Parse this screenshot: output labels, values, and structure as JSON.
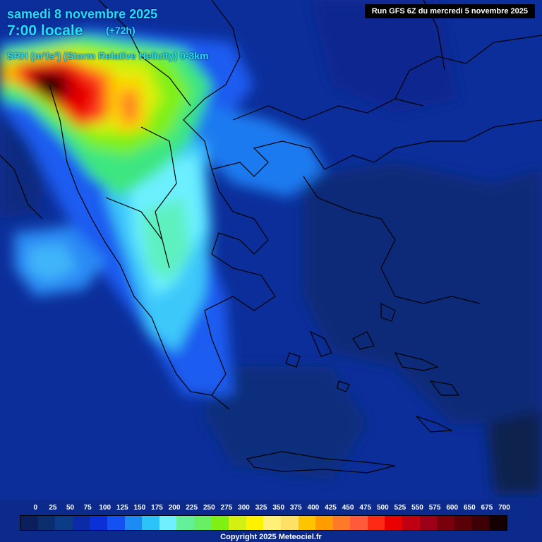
{
  "header": {
    "date": "samedi 8 novembre 2025",
    "time": "7:00 locale",
    "lead": "(+72h)",
    "parameter": "SRH (m²/s²) (Storm Relative Helicity) 0-3km",
    "run": "Run GFS 6Z du mercredi 5 novembre 2025"
  },
  "legend": {
    "labels": [
      "0",
      "25",
      "50",
      "75",
      "100",
      "125",
      "150",
      "175",
      "200",
      "225",
      "250",
      "275",
      "300",
      "325",
      "350",
      "375",
      "400",
      "425",
      "450",
      "475",
      "500",
      "525",
      "550",
      "575",
      "600",
      "650",
      "675",
      "700"
    ],
    "colors": [
      "#0a1f5c",
      "#0b2f6e",
      "#0c3c88",
      "#0a2aa8",
      "#0b30d8",
      "#1450f2",
      "#1c8cf4",
      "#2cc4f8",
      "#6ef0ff",
      "#64f09a",
      "#68f064",
      "#7ef014",
      "#d2f014",
      "#fff200",
      "#fff07a",
      "#ffe066",
      "#ffc400",
      "#ff9c00",
      "#ff7a28",
      "#ff5a3a",
      "#ff2a14",
      "#ea0000",
      "#c00010",
      "#9c0018",
      "#7a000e",
      "#5c0008",
      "#3e0004",
      "#140000"
    ]
  },
  "copyright": "Copyright 2025 Meteociel.fr"
}
